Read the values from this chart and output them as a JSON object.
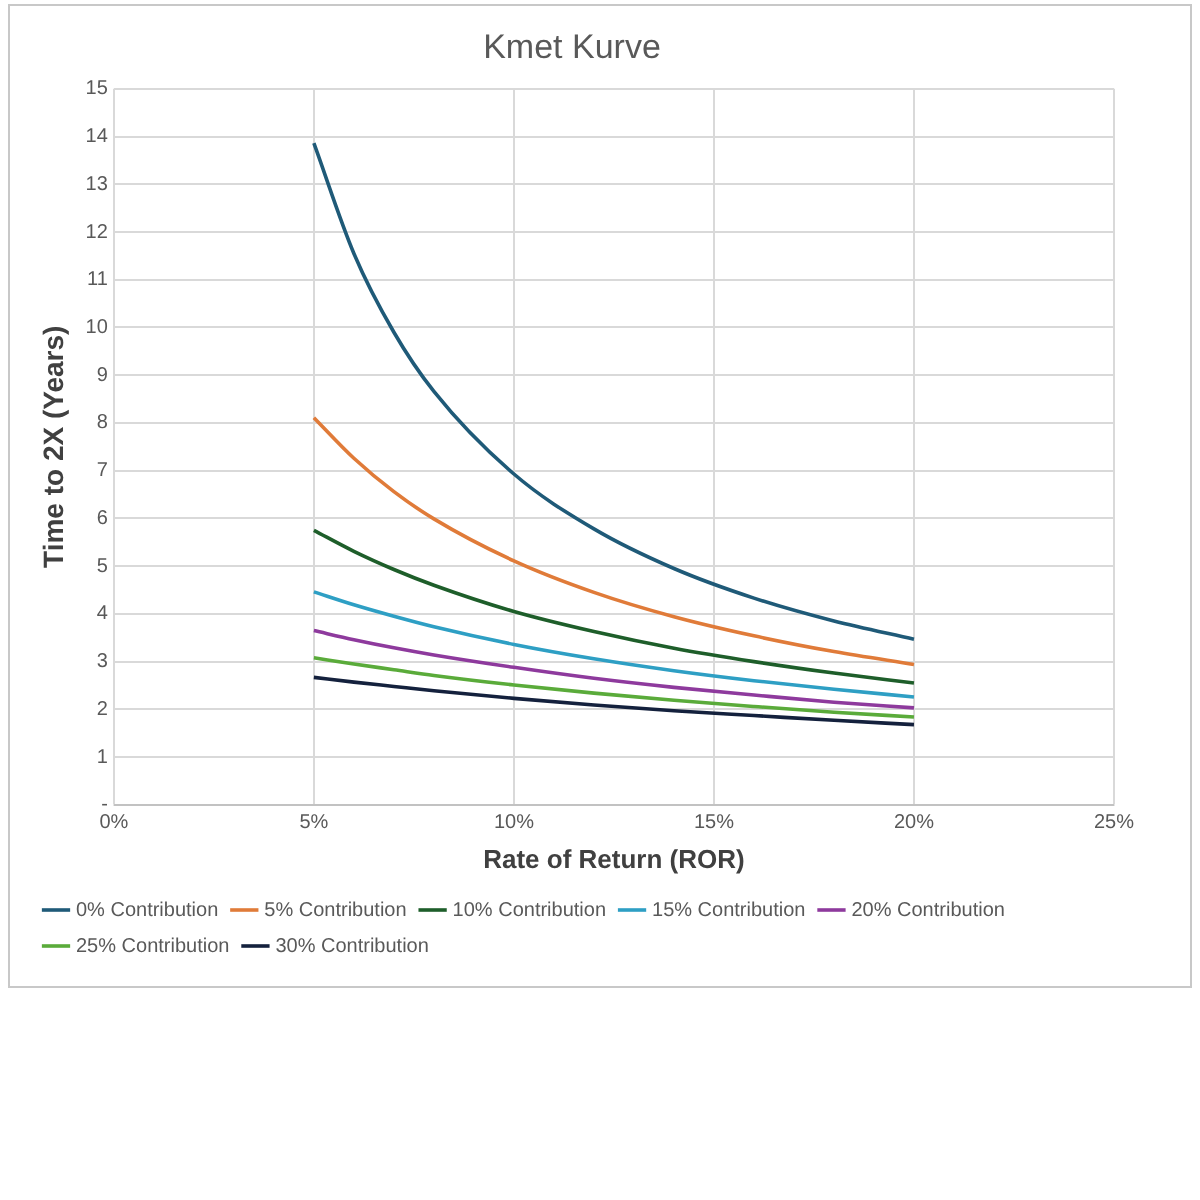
{
  "chart_data": {
    "type": "line",
    "title": "Kmet Kurve",
    "xlabel": "Rate of Return (ROR)",
    "ylabel": "Time to 2X (Years)",
    "x": [
      5,
      6,
      7,
      8,
      10,
      12,
      14,
      16,
      18,
      20
    ],
    "series": [
      {
        "name": "0% Contribution",
        "color": "#1f5a78",
        "values": [
          13.86,
          11.55,
          9.9,
          8.66,
          6.93,
          5.78,
          4.95,
          4.33,
          3.85,
          3.47
        ]
      },
      {
        "name": "5% Contribution",
        "color": "#e07b39",
        "values": [
          8.11,
          7.26,
          6.56,
          5.99,
          5.11,
          4.45,
          3.94,
          3.54,
          3.21,
          2.94
        ]
      },
      {
        "name": "10% Contribution",
        "color": "#1e5e2a",
        "values": [
          5.75,
          5.31,
          4.93,
          4.6,
          4.05,
          3.63,
          3.28,
          3.0,
          2.76,
          2.55
        ]
      },
      {
        "name": "15% Contribution",
        "color": "#2e9fc4",
        "values": [
          4.46,
          4.19,
          3.95,
          3.73,
          3.36,
          3.06,
          2.81,
          2.6,
          2.42,
          2.26
        ]
      },
      {
        "name": "20% Contribution",
        "color": "#8e3a9d",
        "values": [
          3.65,
          3.46,
          3.29,
          3.14,
          2.88,
          2.65,
          2.46,
          2.3,
          2.15,
          2.03
        ]
      },
      {
        "name": "25% Contribution",
        "color": "#5aab3a",
        "values": [
          3.08,
          2.95,
          2.83,
          2.71,
          2.51,
          2.34,
          2.19,
          2.06,
          1.94,
          1.84
        ]
      },
      {
        "name": "30% Contribution",
        "color": "#14213d",
        "values": [
          2.67,
          2.57,
          2.48,
          2.39,
          2.23,
          2.09,
          1.97,
          1.87,
          1.77,
          1.68
        ]
      }
    ],
    "xlim": [
      0,
      25
    ],
    "xticks": [
      {
        "value": 0,
        "label": "0%"
      },
      {
        "value": 5,
        "label": "5%"
      },
      {
        "value": 10,
        "label": "10%"
      },
      {
        "value": 15,
        "label": "15%"
      },
      {
        "value": 20,
        "label": "20%"
      },
      {
        "value": 25,
        "label": "25%"
      }
    ],
    "ylim": [
      0,
      15
    ],
    "yticks": [
      {
        "value": 0,
        "label": "-"
      },
      1,
      2,
      3,
      4,
      5,
      6,
      7,
      8,
      9,
      10,
      11,
      12,
      13,
      14,
      15
    ],
    "grid": true,
    "legend": "bottom",
    "marker": "none",
    "line_style": "solid"
  }
}
